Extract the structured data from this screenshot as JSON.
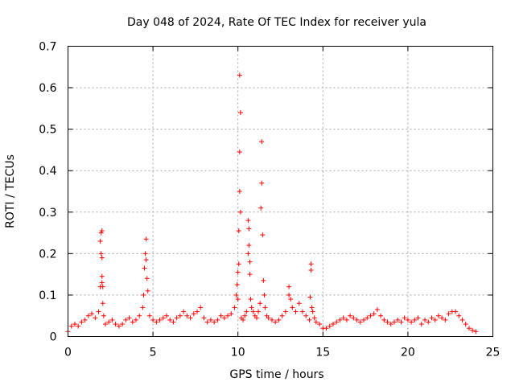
{
  "chart_data": {
    "type": "scatter",
    "title": "Day 048 of 2024, Rate Of TEC Index for receiver yula",
    "xlabel": "GPS time / hours",
    "ylabel": "ROTI / TECUs",
    "xlim": [
      0,
      25
    ],
    "ylim": [
      0,
      0.7
    ],
    "xticks": [
      "0",
      "5",
      "10",
      "15",
      "20",
      "25"
    ],
    "yticks": [
      "0",
      "0.1",
      "0.2",
      "0.3",
      "0.4",
      "0.5",
      "0.6",
      "0.7"
    ],
    "grid": true,
    "marker": "+",
    "color": "#ff0000",
    "series": [
      {
        "name": "ROTI",
        "x": [
          0.0,
          0.2,
          0.4,
          0.6,
          0.8,
          1.0,
          1.2,
          1.4,
          1.6,
          1.8,
          1.9,
          1.9,
          1.95,
          1.95,
          2.0,
          2.0,
          2.0,
          2.0,
          2.05,
          2.05,
          2.1,
          2.2,
          2.4,
          2.6,
          2.8,
          3.0,
          3.2,
          3.4,
          3.6,
          3.8,
          4.0,
          4.2,
          4.4,
          4.45,
          4.5,
          4.55,
          4.6,
          4.6,
          4.65,
          4.7,
          4.8,
          5.0,
          5.2,
          5.4,
          5.6,
          5.8,
          6.0,
          6.2,
          6.4,
          6.6,
          6.8,
          7.0,
          7.2,
          7.4,
          7.6,
          7.8,
          8.0,
          8.2,
          8.4,
          8.6,
          8.8,
          9.0,
          9.2,
          9.4,
          9.6,
          9.8,
          9.9,
          9.95,
          10.0,
          10.0,
          10.05,
          10.05,
          10.1,
          10.1,
          10.1,
          10.15,
          10.15,
          10.2,
          10.3,
          10.4,
          10.5,
          10.6,
          10.6,
          10.65,
          10.65,
          10.7,
          10.7,
          10.75,
          10.8,
          10.9,
          11.0,
          11.1,
          11.2,
          11.3,
          11.35,
          11.4,
          11.4,
          11.45,
          11.5,
          11.55,
          11.6,
          11.7,
          11.8,
          12.0,
          12.2,
          12.4,
          12.6,
          12.8,
          13.0,
          13.0,
          13.1,
          13.2,
          13.4,
          13.6,
          13.8,
          14.0,
          14.2,
          14.25,
          14.3,
          14.3,
          14.35,
          14.4,
          14.5,
          14.6,
          14.8,
          15.0,
          15.2,
          15.4,
          15.6,
          15.8,
          16.0,
          16.2,
          16.4,
          16.6,
          16.8,
          17.0,
          17.2,
          17.4,
          17.6,
          17.8,
          18.0,
          18.2,
          18.4,
          18.6,
          18.8,
          19.0,
          19.2,
          19.4,
          19.6,
          19.8,
          20.0,
          20.2,
          20.4,
          20.6,
          20.8,
          21.0,
          21.2,
          21.4,
          21.6,
          21.8,
          22.0,
          22.2,
          22.4,
          22.6,
          22.8,
          23.0,
          23.2,
          23.4,
          23.6,
          23.8,
          24.0
        ],
        "y": [
          0.012,
          0.025,
          0.03,
          0.025,
          0.035,
          0.04,
          0.05,
          0.055,
          0.045,
          0.06,
          0.12,
          0.23,
          0.25,
          0.2,
          0.145,
          0.19,
          0.255,
          0.13,
          0.08,
          0.12,
          0.05,
          0.03,
          0.035,
          0.04,
          0.03,
          0.025,
          0.03,
          0.04,
          0.045,
          0.035,
          0.04,
          0.05,
          0.07,
          0.1,
          0.165,
          0.2,
          0.185,
          0.235,
          0.14,
          0.11,
          0.05,
          0.04,
          0.035,
          0.04,
          0.045,
          0.05,
          0.04,
          0.035,
          0.045,
          0.05,
          0.06,
          0.05,
          0.045,
          0.055,
          0.06,
          0.07,
          0.045,
          0.035,
          0.04,
          0.035,
          0.04,
          0.05,
          0.045,
          0.05,
          0.055,
          0.07,
          0.1,
          0.125,
          0.155,
          0.09,
          0.175,
          0.255,
          0.35,
          0.445,
          0.63,
          0.54,
          0.3,
          0.045,
          0.04,
          0.05,
          0.06,
          0.2,
          0.28,
          0.26,
          0.22,
          0.15,
          0.18,
          0.09,
          0.07,
          0.06,
          0.05,
          0.045,
          0.06,
          0.08,
          0.31,
          0.47,
          0.37,
          0.245,
          0.135,
          0.1,
          0.07,
          0.05,
          0.045,
          0.04,
          0.035,
          0.04,
          0.05,
          0.06,
          0.12,
          0.1,
          0.09,
          0.07,
          0.06,
          0.08,
          0.06,
          0.05,
          0.04,
          0.095,
          0.16,
          0.175,
          0.07,
          0.06,
          0.045,
          0.035,
          0.03,
          0.02,
          0.02,
          0.025,
          0.03,
          0.035,
          0.04,
          0.045,
          0.04,
          0.05,
          0.045,
          0.04,
          0.035,
          0.04,
          0.045,
          0.05,
          0.055,
          0.065,
          0.05,
          0.04,
          0.035,
          0.03,
          0.035,
          0.04,
          0.035,
          0.045,
          0.04,
          0.035,
          0.04,
          0.045,
          0.03,
          0.04,
          0.035,
          0.045,
          0.04,
          0.05,
          0.045,
          0.04,
          0.055,
          0.06,
          0.06,
          0.05,
          0.04,
          0.03,
          0.02,
          0.015,
          0.012
        ]
      }
    ]
  }
}
